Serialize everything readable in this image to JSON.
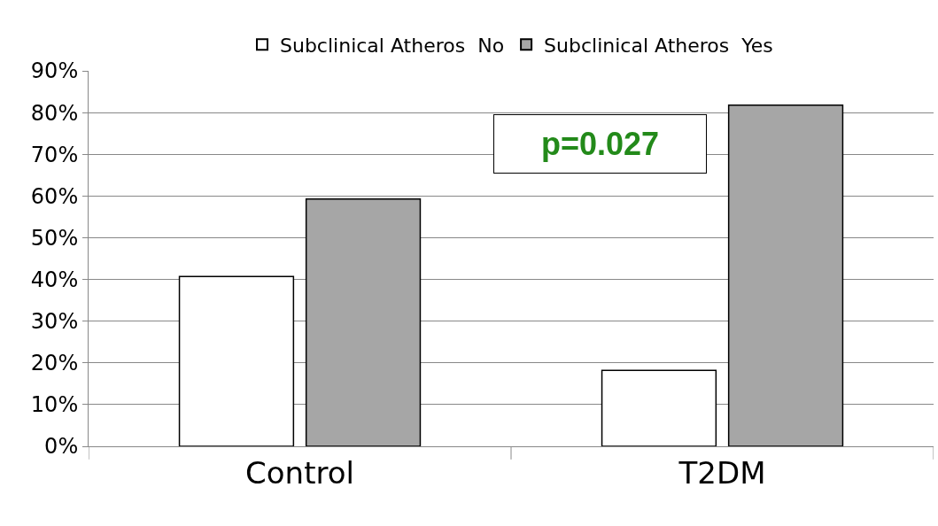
{
  "chart_data": {
    "type": "bar",
    "categories": [
      "Control",
      "T2DM"
    ],
    "series": [
      {
        "name": "Subclinical Atheros  No",
        "color": "#ffffff",
        "values": [
          40.7,
          18.2
        ]
      },
      {
        "name": "Subclinical Atheros  Yes",
        "color": "#a6a6a6",
        "values": [
          59.3,
          81.8
        ]
      }
    ],
    "ylim": [
      0,
      90
    ],
    "yticks": [
      {
        "value": 0,
        "label": "0%"
      },
      {
        "value": 10,
        "label": "10%"
      },
      {
        "value": 20,
        "label": "20%"
      },
      {
        "value": 30,
        "label": "30%"
      },
      {
        "value": 40,
        "label": "40%"
      },
      {
        "value": 50,
        "label": "50%"
      },
      {
        "value": 60,
        "label": "60%"
      },
      {
        "value": 70,
        "label": "70%"
      },
      {
        "value": 80,
        "label": "80%"
      },
      {
        "value": 90,
        "label": "90%"
      }
    ],
    "annotations": [
      "p=0.027"
    ],
    "grid": "y",
    "legend": "top"
  }
}
